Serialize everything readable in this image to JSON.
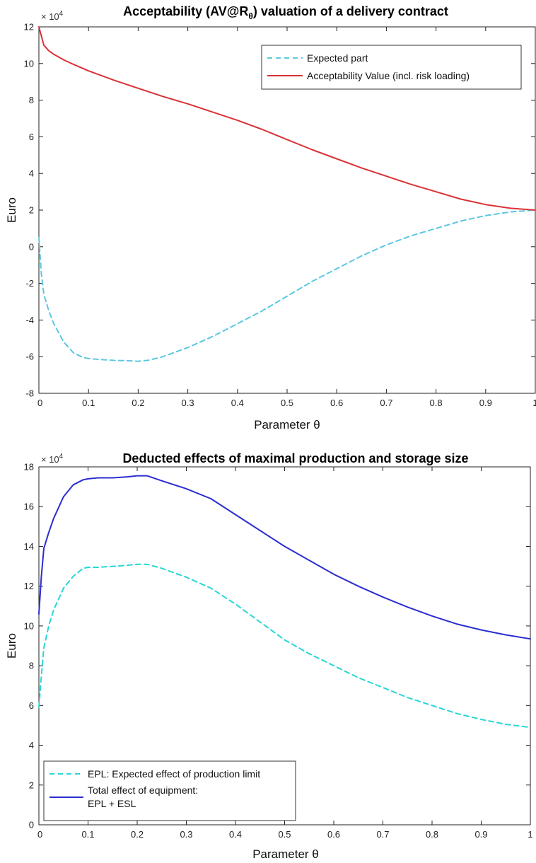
{
  "chart_data": [
    {
      "type": "line",
      "title_main": "Acceptability (AV@R",
      "title_sub": "θ",
      "title_end": ") valuation of a delivery contract",
      "xlabel": "Parameter θ",
      "ylabel": "Euro",
      "exponent_base": "× 10",
      "exponent_power": "4",
      "xlim": [
        0,
        1
      ],
      "ylim": [
        -8,
        12
      ],
      "xticks": [
        "0",
        "0.1",
        "0.2",
        "0.3",
        "0.4",
        "0.5",
        "0.6",
        "0.7",
        "0.8",
        "0.9",
        "1"
      ],
      "yticks": [
        "-8",
        "-6",
        "-4",
        "-2",
        "0",
        "2",
        "4",
        "6",
        "8",
        "10",
        "12"
      ],
      "legend_position": "top-right",
      "series": [
        {
          "name": "Expected part",
          "color": "#5bc8e0",
          "style": "dashed",
          "x": [
            0,
            0.005,
            0.01,
            0.02,
            0.03,
            0.05,
            0.07,
            0.09,
            0.1,
            0.12,
            0.15,
            0.18,
            0.2,
            0.22,
            0.25,
            0.3,
            0.35,
            0.4,
            0.45,
            0.5,
            0.55,
            0.6,
            0.65,
            0.7,
            0.75,
            0.8,
            0.85,
            0.9,
            0.95,
            1.0
          ],
          "y": [
            0.5,
            -1.5,
            -2.6,
            -3.5,
            -4.2,
            -5.2,
            -5.8,
            -6.05,
            -6.1,
            -6.15,
            -6.2,
            -6.22,
            -6.25,
            -6.2,
            -6.0,
            -5.5,
            -4.9,
            -4.2,
            -3.5,
            -2.7,
            -1.9,
            -1.2,
            -0.5,
            0.1,
            0.6,
            1.0,
            1.4,
            1.7,
            1.9,
            2.0
          ]
        },
        {
          "name": "Acceptability Value (incl. risk loading)",
          "color": "#d93238",
          "style": "solid",
          "x": [
            0,
            0.005,
            0.01,
            0.02,
            0.03,
            0.05,
            0.07,
            0.1,
            0.15,
            0.2,
            0.25,
            0.3,
            0.35,
            0.4,
            0.45,
            0.5,
            0.55,
            0.6,
            0.65,
            0.7,
            0.75,
            0.8,
            0.85,
            0.9,
            0.95,
            1.0
          ],
          "y": [
            12.0,
            11.5,
            11.0,
            10.7,
            10.5,
            10.2,
            9.95,
            9.6,
            9.1,
            8.65,
            8.2,
            7.8,
            7.35,
            6.9,
            6.4,
            5.85,
            5.3,
            4.8,
            4.3,
            3.85,
            3.4,
            3.0,
            2.6,
            2.3,
            2.1,
            2.0
          ]
        }
      ]
    },
    {
      "type": "line",
      "title": "Deducted effects of maximal production and storage size",
      "xlabel": "Parameter θ",
      "ylabel": "Euro",
      "exponent_base": "× 10",
      "exponent_power": "4",
      "xlim": [
        0,
        1
      ],
      "ylim": [
        0,
        18
      ],
      "xticks": [
        "0",
        "0.1",
        "0.2",
        "0.3",
        "0.4",
        "0.5",
        "0.6",
        "0.7",
        "0.8",
        "0.9",
        "1"
      ],
      "yticks": [
        "0",
        "2",
        "4",
        "6",
        "8",
        "10",
        "12",
        "14",
        "16",
        "18"
      ],
      "legend_position": "bottom-left",
      "series": [
        {
          "name": "EPL: Expected effect of production limit",
          "color": "#29d6d6",
          "style": "dashed",
          "x": [
            0,
            0.005,
            0.01,
            0.02,
            0.03,
            0.05,
            0.07,
            0.09,
            0.1,
            0.12,
            0.15,
            0.18,
            0.2,
            0.22,
            0.25,
            0.3,
            0.35,
            0.4,
            0.45,
            0.5,
            0.55,
            0.6,
            0.65,
            0.7,
            0.75,
            0.8,
            0.85,
            0.9,
            0.95,
            1.0
          ],
          "y": [
            5.9,
            7.5,
            8.9,
            10.0,
            10.8,
            11.9,
            12.5,
            12.9,
            12.95,
            12.95,
            13.0,
            13.05,
            13.1,
            13.1,
            12.9,
            12.45,
            11.9,
            11.1,
            10.2,
            9.3,
            8.6,
            8.0,
            7.4,
            6.9,
            6.4,
            6.0,
            5.6,
            5.3,
            5.05,
            4.9
          ]
        },
        {
          "name": "Total effect of equipment:",
          "name_line2": "EPL + ESL",
          "color": "#2b2ed1",
          "style": "solid",
          "x": [
            0,
            0.005,
            0.01,
            0.02,
            0.03,
            0.05,
            0.07,
            0.09,
            0.1,
            0.12,
            0.15,
            0.18,
            0.2,
            0.22,
            0.25,
            0.3,
            0.35,
            0.4,
            0.45,
            0.5,
            0.55,
            0.6,
            0.65,
            0.7,
            0.75,
            0.8,
            0.85,
            0.9,
            0.95,
            1.0
          ],
          "y": [
            10.6,
            12.5,
            13.9,
            14.7,
            15.4,
            16.5,
            17.1,
            17.35,
            17.4,
            17.45,
            17.45,
            17.5,
            17.55,
            17.55,
            17.3,
            16.9,
            16.4,
            15.6,
            14.8,
            14.0,
            13.3,
            12.6,
            12.0,
            11.45,
            10.95,
            10.5,
            10.1,
            9.8,
            9.55,
            9.35
          ]
        }
      ]
    }
  ]
}
